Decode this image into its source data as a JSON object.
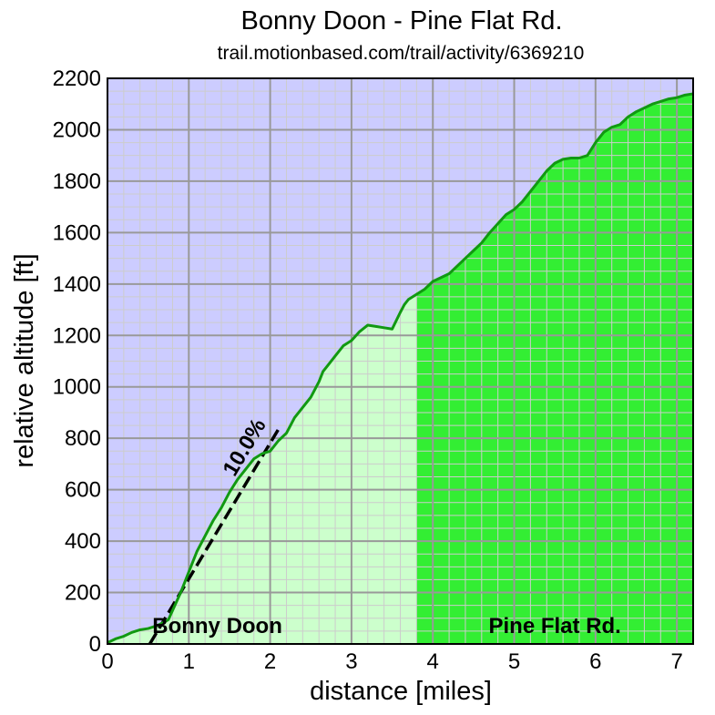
{
  "chart_data": {
    "type": "area",
    "title": "Bonny Doon - Pine Flat Rd.",
    "subtitle": "trail.motionbased.com/trail/activity/6369210",
    "xlabel": "distance [miles]",
    "ylabel": "relative altitude [ft]",
    "xlim": [
      0,
      7.2
    ],
    "ylim": [
      0,
      2200
    ],
    "x_ticks": [
      0,
      1,
      2,
      3,
      4,
      5,
      6,
      7
    ],
    "y_ticks": [
      0,
      200,
      400,
      600,
      800,
      1000,
      1200,
      1400,
      1600,
      1800,
      2000,
      2200
    ],
    "minor_x_step": 0.2,
    "minor_y_step": 50,
    "grid": true,
    "segments": [
      {
        "name": "Bonny Doon",
        "x_start": 0,
        "x_end": 3.8,
        "color": "#ccffcc"
      },
      {
        "name": "Pine Flat Rd.",
        "x_start": 3.8,
        "x_end": 7.2,
        "color": "#33ee33"
      }
    ],
    "grade_line": {
      "label": "10.0%",
      "grade_percent": 10.0,
      "x_start": 0.52,
      "x_end": 2.1
    },
    "colors": {
      "sky": "#ccccff",
      "profile_line": "#119911",
      "grid_major": "#999999",
      "grid_minor": "#cccccc"
    },
    "profile": {
      "x": [
        0,
        0.1,
        0.2,
        0.3,
        0.4,
        0.5,
        0.6,
        0.7,
        0.75,
        0.8,
        0.9,
        1.0,
        1.1,
        1.2,
        1.3,
        1.4,
        1.5,
        1.6,
        1.7,
        1.8,
        1.9,
        2.0,
        2.1,
        2.2,
        2.3,
        2.4,
        2.5,
        2.6,
        2.65,
        2.7,
        2.8,
        2.9,
        3.0,
        3.1,
        3.2,
        3.3,
        3.4,
        3.5,
        3.6,
        3.65,
        3.7,
        3.8,
        3.9,
        4.0,
        4.1,
        4.2,
        4.3,
        4.4,
        4.5,
        4.6,
        4.7,
        4.8,
        4.9,
        5.0,
        5.1,
        5.2,
        5.3,
        5.4,
        5.5,
        5.6,
        5.7,
        5.8,
        5.9,
        6.0,
        6.1,
        6.2,
        6.3,
        6.4,
        6.5,
        6.6,
        6.7,
        6.8,
        6.9,
        7.0,
        7.1,
        7.2
      ],
      "y": [
        5,
        20,
        30,
        45,
        55,
        60,
        70,
        85,
        95,
        130,
        200,
        280,
        360,
        420,
        480,
        530,
        590,
        640,
        680,
        720,
        740,
        750,
        790,
        820,
        880,
        920,
        960,
        1020,
        1060,
        1080,
        1120,
        1160,
        1180,
        1215,
        1240,
        1235,
        1230,
        1225,
        1290,
        1320,
        1340,
        1360,
        1380,
        1410,
        1425,
        1440,
        1470,
        1500,
        1530,
        1560,
        1600,
        1635,
        1670,
        1690,
        1720,
        1760,
        1800,
        1840,
        1870,
        1885,
        1890,
        1890,
        1900,
        1950,
        1990,
        2010,
        2020,
        2050,
        2070,
        2085,
        2100,
        2110,
        2120,
        2125,
        2135,
        2140
      ]
    }
  }
}
